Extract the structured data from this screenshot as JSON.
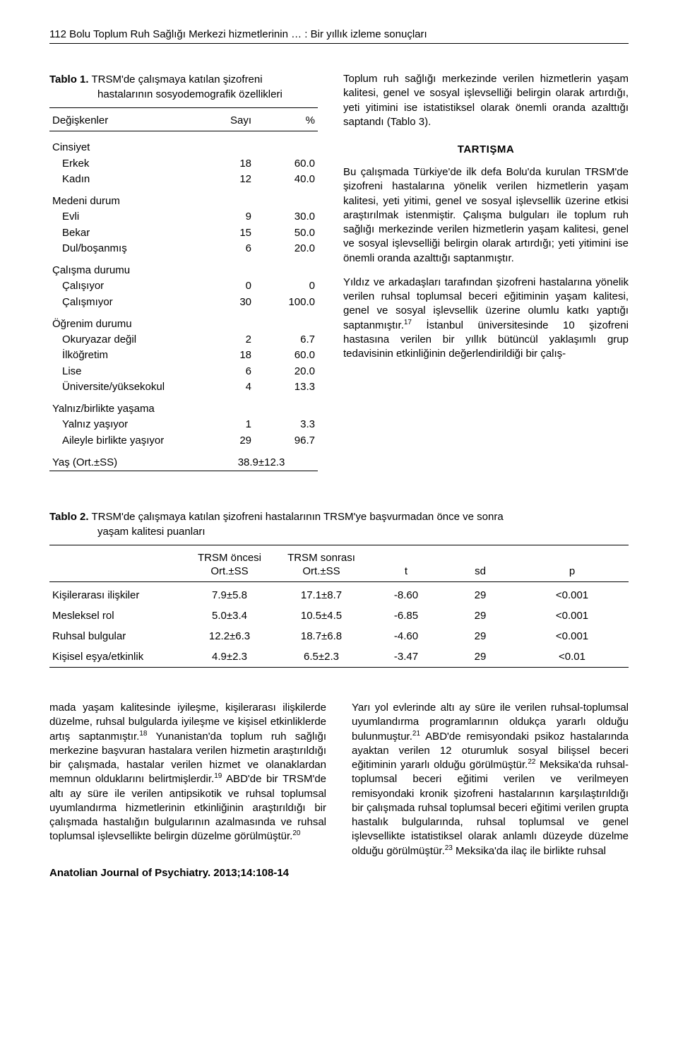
{
  "runningHead": "112  Bolu Toplum Ruh Sağlığı Merkezi hizmetlerinin … : Bir yıllık izleme sonuçları",
  "table1": {
    "captionLine1": "Tablo 1.",
    "captionLine2": " TRSM'de çalışmaya katılan şizofreni",
    "captionLine3": "hastalarının sosyodemografik özellikleri",
    "header": {
      "c1": "Değişkenler",
      "c2": "Sayı",
      "c3": "%"
    },
    "groups": [
      {
        "title": "Cinsiyet",
        "rows": [
          {
            "label": "Erkek",
            "n": "18",
            "pct": "60.0"
          },
          {
            "label": "Kadın",
            "n": "12",
            "pct": "40.0"
          }
        ]
      },
      {
        "title": "Medeni durum",
        "rows": [
          {
            "label": "Evli",
            "n": "9",
            "pct": "30.0"
          },
          {
            "label": "Bekar",
            "n": "15",
            "pct": "50.0"
          },
          {
            "label": "Dul/boşanmış",
            "n": "6",
            "pct": "20.0"
          }
        ]
      },
      {
        "title": "Çalışma durumu",
        "rows": [
          {
            "label": "Çalışıyor",
            "n": "0",
            "pct": "0"
          },
          {
            "label": "Çalışmıyor",
            "n": "30",
            "pct": "100.0"
          }
        ]
      },
      {
        "title": "Öğrenim durumu",
        "rows": [
          {
            "label": "Okuryazar değil",
            "n": "2",
            "pct": "6.7"
          },
          {
            "label": "İlköğretim",
            "n": "18",
            "pct": "60.0"
          },
          {
            "label": "Lise",
            "n": "6",
            "pct": "20.0"
          },
          {
            "label": "Üniversite/yüksekokul",
            "n": "4",
            "pct": "13.3"
          }
        ]
      },
      {
        "title": "Yalnız/birlikte yaşama",
        "rows": [
          {
            "label": "Yalnız yaşıyor",
            "n": "1",
            "pct": "3.3"
          },
          {
            "label": "Aileyle birlikte yaşıyor",
            "n": "29",
            "pct": "96.7"
          }
        ]
      }
    ],
    "ageRow": {
      "label": "Yaş (Ort.±SS)",
      "value": "38.9±12.3"
    }
  },
  "rightCol": {
    "para1": "Toplum ruh sağlığı merkezinde verilen hizmetlerin yaşam kalitesi, genel ve sosyal işlevselliği belirgin olarak artırdığı, yeti yitimini ise istatistiksel olarak önemli oranda azalttığı saptandı (Tablo 3).",
    "heading": "TARTIŞMA",
    "para2": "Bu çalışmada Türkiye'de ilk defa Bolu'da kurulan TRSM'de şizofreni hastalarına yönelik verilen hizmetlerin yaşam kalitesi, yeti yitimi, genel ve sosyal işlevsellik üzerine etkisi araştırılmak istenmiştir. Çalışma bulguları ile toplum ruh sağlığı merkezinde verilen hizmetlerin yaşam kalitesi, genel ve sosyal işlevselliği belirgin olarak artırdığı; yeti yitimini ise önemli oranda azalttığı saptanmıştır.",
    "para3_pre": "Yıldız ve arkadaşları tarafından şizofreni hastalarına yönelik verilen ruhsal toplumsal beceri eğitiminin yaşam kalitesi, genel ve sosyal işlevsellik üzerine olumlu katkı yaptığı saptanmıştır.",
    "para3_sup": "17",
    "para3_post": " İstanbul üniversitesinde 10 şizofreni hastasına verilen bir yıllık bütüncül yaklaşımlı grup tedavisinin etkinliğinin değerlendirildiği bir çalış-"
  },
  "table2": {
    "captionBoldLabel": "Tablo 2.",
    "captionLine1": " TRSM'de çalışmaya katılan şizofreni hastalarının TRSM'ye başvurmadan önce ve sonra",
    "captionLine2": "yaşam kalitesi puanları",
    "header1": {
      "c2": "TRSM öncesi",
      "c3": "TRSM sonrası"
    },
    "header2": {
      "c1": "",
      "c2": "Ort.±SS",
      "c3": "Ort.±SS",
      "c4": "t",
      "c5": "sd",
      "c6": "p"
    },
    "rows": [
      {
        "c1": "Kişilerarası ilişkiler",
        "c2": "7.9±5.8",
        "c3": "17.1±8.7",
        "c4": "-8.60",
        "c5": "29",
        "c6": "<0.001"
      },
      {
        "c1": "Mesleksel rol",
        "c2": "5.0±3.4",
        "c3": "10.5±4.5",
        "c4": "-6.85",
        "c5": "29",
        "c6": "<0.001"
      },
      {
        "c1": "Ruhsal bulgular",
        "c2": "12.2±6.3",
        "c3": "18.7±6.8",
        "c4": "-4.60",
        "c5": "29",
        "c6": "<0.001"
      },
      {
        "c1": "Kişisel eşya/etkinlik",
        "c2": "4.9±2.3",
        "c3": "6.5±2.3",
        "c4": "-3.47",
        "c5": "29",
        "c6": "<0.01"
      }
    ]
  },
  "bottomLeft": {
    "frag1": "mada yaşam kalitesinde iyileşme, kişilerarası ilişkilerde düzelme, ruhsal bulgularda iyileşme ve kişisel etkinliklerde artış saptanmıştır.",
    "sup1": "18",
    "frag2": " Yunanistan'da toplum ruh sağlığı merkezine başvuran hastalara verilen hizmetin araştırıldığı bir çalışmada, hastalar verilen hizmet ve olanaklardan memnun olduklarını belirtmişlerdir.",
    "sup2": "19",
    "frag3": " ABD'de bir TRSM'de altı ay süre ile verilen antipsikotik ve ruhsal toplumsal uyumlandırma hizmetlerinin etkinliğinin araştırıldığı bir çalışmada hastalığın bulgularının azalmasında ve ruhsal toplumsal işlevsellikte belirgin düzelme görülmüştür.",
    "sup3": "20"
  },
  "bottomRight": {
    "frag1": "Yarı yol evlerinde altı ay süre ile verilen ruhsal-toplumsal uyumlandırma programlarının oldukça yararlı olduğu bulunmuştur.",
    "sup1": "21",
    "frag2": " ABD'de remisyondaki psikoz hastalarında ayaktan verilen 12 oturumluk sosyal bilişsel beceri eğitiminin yararlı olduğu görülmüştür.",
    "sup2": "22",
    "frag3": " Meksika'da ruhsal-toplumsal beceri eğitimi verilen ve verilmeyen remisyondaki kronik şizofreni hastalarının karşılaştırıldığı bir çalışmada ruhsal toplumsal beceri eğitimi verilen grupta hastalık bulgularında, ruhsal toplumsal ve genel işlevsellikte istatistiksel olarak anlamlı düzeyde düzelme olduğu görülmüştür.",
    "sup3": "23",
    "frag4": " Meksika'da ilaç ile birlikte ruhsal"
  },
  "footer": "Anatolian Journal of Psychiatry. 2013;14:108-14"
}
